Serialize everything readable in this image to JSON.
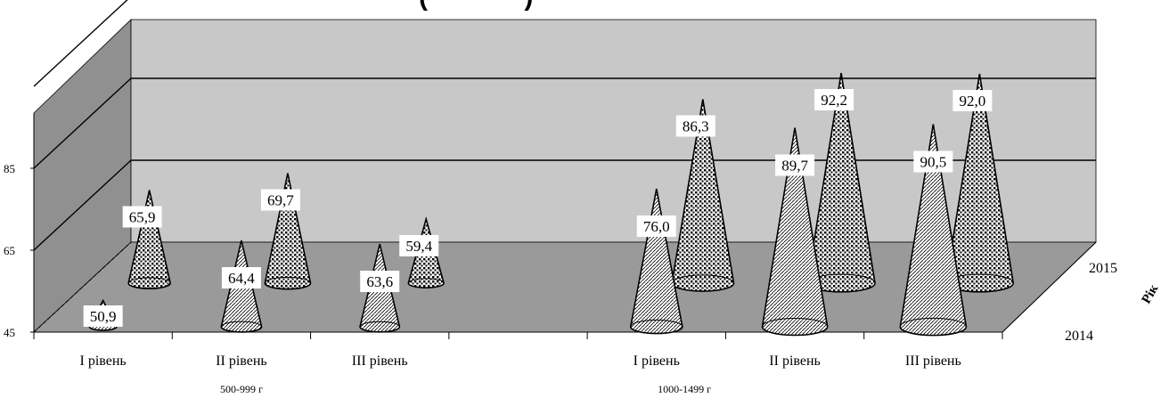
{
  "title_fragment": "(             )",
  "chart_data": {
    "type": "bar",
    "bar_shape": "cone-3d",
    "categories": [
      "І рівень",
      "ІІ рівень",
      "ІІІ рівень",
      "І рівень",
      "ІІ рівень",
      "ІІІ рівень"
    ],
    "category_groups": [
      {
        "label": "500-999 г",
        "categories": [
          0,
          1,
          2
        ]
      },
      {
        "label": "1000-1499 г",
        "categories": [
          3,
          4,
          5
        ]
      }
    ],
    "series": [
      {
        "name": "2014",
        "values": [
          50.9,
          64.4,
          63.6,
          76.0,
          89.7,
          90.5
        ]
      },
      {
        "name": "2015",
        "values": [
          65.9,
          69.7,
          59.4,
          86.3,
          92.2,
          92.0
        ]
      }
    ],
    "y_ticks": [
      "45",
      "65",
      "85"
    ],
    "ylim": [
      45,
      105
    ],
    "depth_axis_label": "Рік",
    "grid": true
  }
}
